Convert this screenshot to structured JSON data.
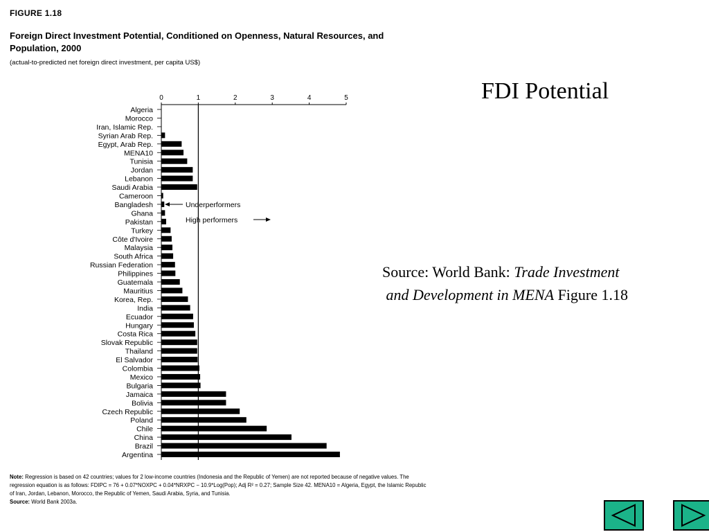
{
  "figure": {
    "label": "FIGURE 1.18",
    "title": "Foreign Direct Investment Potential, Conditioned on Openness, Natural Resources, and Population, 2000",
    "subtitle": "(actual-to-predicted net foreign direct investment, per capita US$)",
    "note_label": "Note:",
    "note": "Regression is based on 42 countries; values for 2 low-income countries (Indonesia and the Republic of Yemen) are not reported because of negative values. The regression equation is as follows: FDIPC = 76 + 0.07*NOXPC + 0.04*NRXPC − 10.9*Log(Pop); Adj R² = 0.27; Sample Size 42. MENA10 = Algeria, Egypt, the Islamic Republic of Iran, Jordan, Lebanon, Morocco, the Republic of Yemen, Saudi Arabia, Syria, and Tunisia.",
    "source_label": "Source:",
    "source": "World Bank 2003a."
  },
  "chart_data": {
    "type": "bar",
    "orientation": "horizontal",
    "categories": [
      "Algeria",
      "Morocco",
      "Iran, Islamic Rep.",
      "Syrian Arab Rep.",
      "Egypt, Arab Rep.",
      "MENA10",
      "Tunisia",
      "Jordan",
      "Lebanon",
      "Saudi Arabia",
      "Cameroon",
      "Bangladesh",
      "Ghana",
      "Pakistan",
      "Turkey",
      "Côte d'Ivoire",
      "Malaysia",
      "South Africa",
      "Russian Federation",
      "Philippines",
      "Guatemala",
      "Mauritius",
      "Korea, Rep.",
      "India",
      "Ecuador",
      "Hungary",
      "Costa Rica",
      "Slovak Republic",
      "Thailand",
      "El Salvador",
      "Colombia",
      "Mexico",
      "Bulgaria",
      "Jamaica",
      "Bolivia",
      "Czech Republic",
      "Poland",
      "Chile",
      "China",
      "Brazil",
      "Argentina"
    ],
    "values": [
      0,
      0,
      0,
      0.1,
      0.55,
      0.6,
      0.7,
      0.85,
      0.85,
      0.97,
      0.05,
      0.08,
      0.1,
      0.13,
      0.25,
      0.28,
      0.3,
      0.32,
      0.37,
      0.38,
      0.5,
      0.57,
      0.72,
      0.78,
      0.86,
      0.88,
      0.92,
      0.97,
      0.97,
      0.98,
      1.03,
      1.05,
      1.06,
      1.75,
      1.75,
      2.12,
      2.3,
      2.85,
      3.52,
      4.47,
      4.83
    ],
    "xlim": [
      0,
      5
    ],
    "x_ticks": [
      0,
      1,
      2,
      3,
      4,
      5
    ],
    "reference_line": 1,
    "annotations": {
      "under": "Underperformers",
      "high": "High performers"
    },
    "grid": false,
    "legend": "none"
  },
  "slide": {
    "title": "FDI Potential",
    "source_prefix": "Source: World Bank: ",
    "source_italic_1": "Trade Investment",
    "source_italic_2": "and Development in MENA",
    "source_suffix": " Figure 1.18"
  },
  "nav": {
    "color": "#1bb389"
  }
}
